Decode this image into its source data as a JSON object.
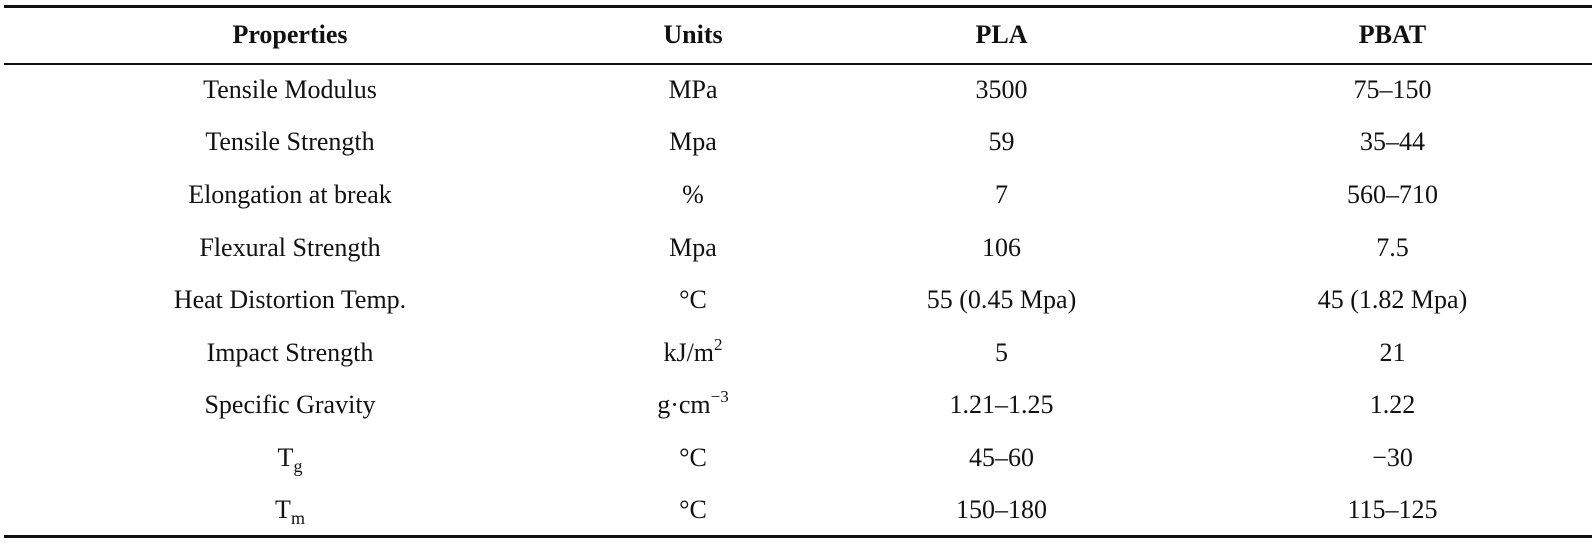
{
  "table": {
    "headers": [
      "Properties",
      "Units",
      "PLA",
      "PBAT"
    ],
    "rows": [
      {
        "property": "Tensile Modulus",
        "unit": "MPa",
        "pla": "3500",
        "pbat": "75–150"
      },
      {
        "property": "Tensile Strength",
        "unit": "Mpa",
        "pla": "59",
        "pbat": "35–44"
      },
      {
        "property": "Elongation at break",
        "unit": "%",
        "pla": "7",
        "pbat": "560–710"
      },
      {
        "property": "Flexural Strength",
        "unit": "Mpa",
        "pla": "106",
        "pbat": "7.5"
      },
      {
        "property": "Heat Distortion Temp.",
        "unit": "°C",
        "pla": "55 (0.45 Mpa)",
        "pbat": "45 (1.82 Mpa)"
      },
      {
        "property": "Impact Strength",
        "unit": "kJ/m",
        "unit_sup": "2",
        "pla": "5",
        "pbat": "21"
      },
      {
        "property": "Specific Gravity",
        "unit": "g·cm",
        "unit_sup": "−3",
        "pla": "1.21–1.25",
        "pbat": "1.22"
      },
      {
        "property": "T",
        "property_sub": "g",
        "unit": "°C",
        "pla": "45–60",
        "pbat": "−30"
      },
      {
        "property": "T",
        "property_sub": "m",
        "unit": "°C",
        "pla": "150–180",
        "pbat": "115–125"
      }
    ]
  }
}
